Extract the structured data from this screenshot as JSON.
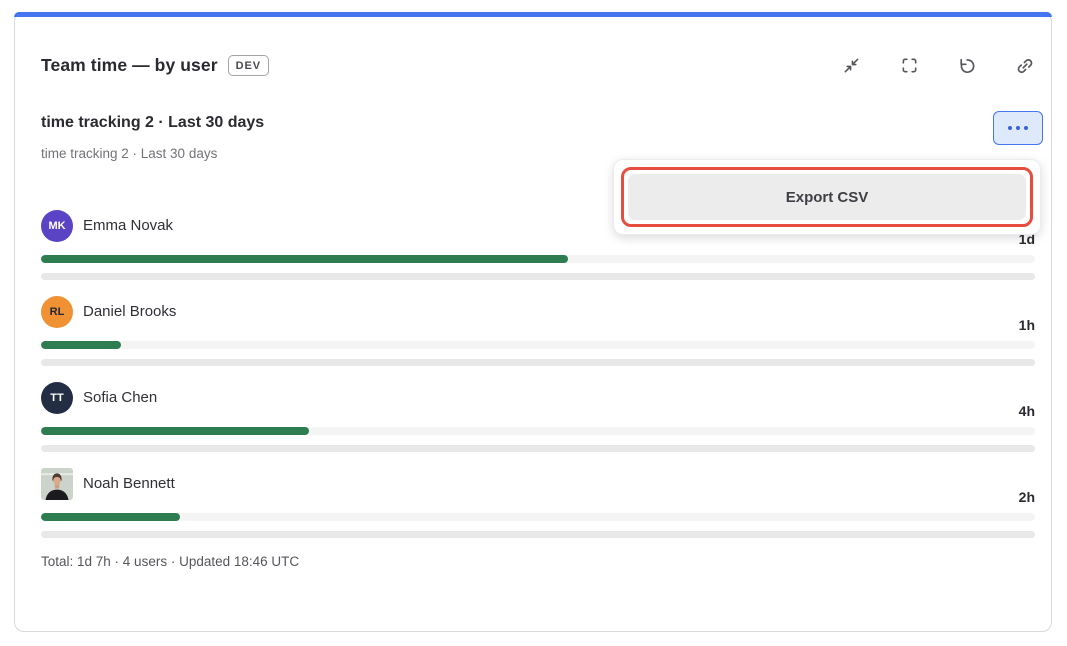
{
  "card": {
    "title": "Team time — by user",
    "badge": "DEV",
    "accent_color": "#4576f2",
    "toolbar": {
      "icons": [
        "collapse-icon",
        "maximize-icon",
        "retry-icon",
        "link-icon"
      ]
    },
    "widget": {
      "title": "time tracking 2 · Last 30 days",
      "subtitle": "time tracking 2 · Last 30 days",
      "menu_button_icon": "ellipsis-icon",
      "menu": {
        "items": [
          {
            "label": "Export CSV",
            "highlighted": true
          }
        ],
        "highlight_color": "#e64d3f"
      },
      "bar_color": "#2e7d50",
      "users": [
        {
          "name": "Emma Novak",
          "initials": "MK",
          "avatar_color": "#5a43c4",
          "avatar_text_color": "#ffffff",
          "time": "1d",
          "percent": 53
        },
        {
          "name": "Daniel Brooks",
          "initials": "RL",
          "avatar_color": "#f09234",
          "avatar_text_color": "#232735",
          "time": "1h",
          "percent": 8
        },
        {
          "name": "Sofia Chen",
          "initials": "TT",
          "avatar_color": "#232e44",
          "avatar_text_color": "#ffffff",
          "time": "4h",
          "percent": 27
        },
        {
          "name": "Noah Bennett",
          "avatar_type": "photo",
          "time": "2h",
          "percent": 14
        }
      ],
      "footer": "Total: 1d 7h · 4 users · Updated 18:46 UTC"
    }
  }
}
